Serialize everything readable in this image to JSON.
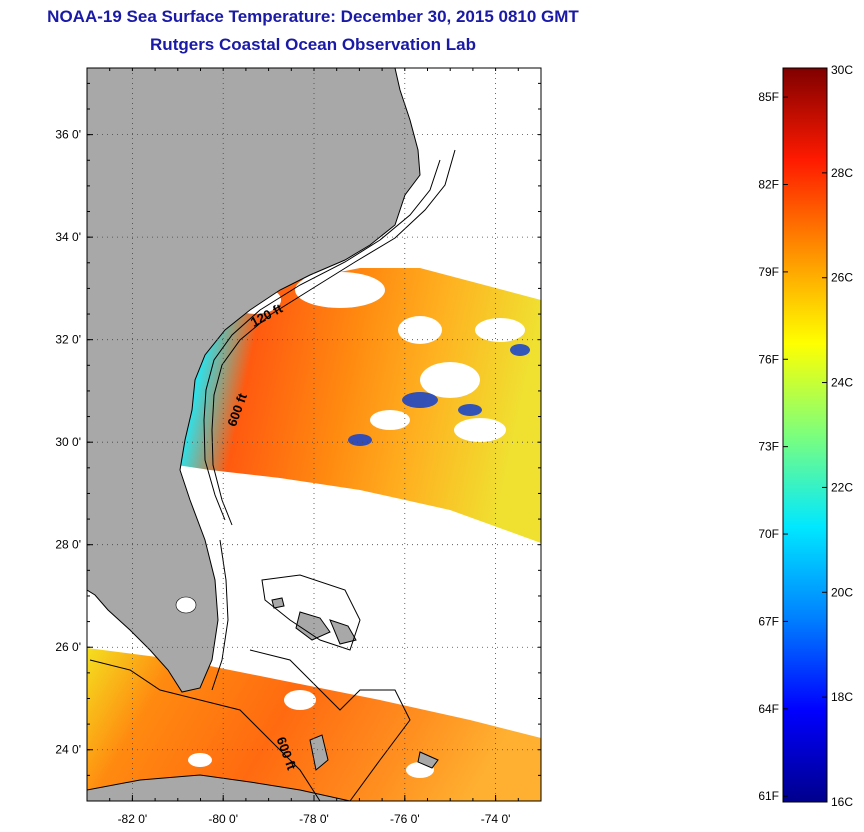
{
  "header": {
    "title": "NOAA-19 Sea Surface Temperature:  December 30, 2015 0810 GMT",
    "subtitle": "Rutgers Coastal Ocean Observation Lab"
  },
  "map": {
    "lon_range": [
      -83,
      -73
    ],
    "lat_range": [
      23,
      37.3
    ],
    "lon_ticks": [
      {
        "value": -82,
        "label": "-82 0'"
      },
      {
        "value": -80,
        "label": "-80 0'"
      },
      {
        "value": -78,
        "label": "-78 0'"
      },
      {
        "value": -76,
        "label": "-76 0'"
      },
      {
        "value": -74,
        "label": "-74 0'"
      }
    ],
    "lat_ticks": [
      {
        "value": 36,
        "label": "36 0'"
      },
      {
        "value": 34,
        "label": "34 0'"
      },
      {
        "value": 32,
        "label": "32 0'"
      },
      {
        "value": 30,
        "label": "30 0'"
      },
      {
        "value": 28,
        "label": "28 0'"
      },
      {
        "value": 26,
        "label": "26 0'"
      },
      {
        "value": 24,
        "label": "24 0'"
      }
    ],
    "grid": "dotted",
    "contour_labels": [
      {
        "text": "120 ft",
        "lon": -79.0,
        "lat": 32.4,
        "rotate": -28
      },
      {
        "text": "600 ft",
        "lon": -79.6,
        "lat": 30.6,
        "rotate": -70
      },
      {
        "text": "600 ft",
        "lon": -78.7,
        "lat": 23.9,
        "rotate": 70
      }
    ],
    "colors": {
      "land": "#a8a8a8",
      "coast": "#000000",
      "ocean_no_data": "#ffffff"
    }
  },
  "colorbar": {
    "min_c": 16,
    "max_c": 30,
    "celsius_ticks": [
      {
        "value": 30,
        "label": "30C"
      },
      {
        "value": 28,
        "label": "28C"
      },
      {
        "value": 26,
        "label": "26C"
      },
      {
        "value": 24,
        "label": "24C"
      },
      {
        "value": 22,
        "label": "22C"
      },
      {
        "value": 20,
        "label": "20C"
      },
      {
        "value": 18,
        "label": "18C"
      },
      {
        "value": 16,
        "label": "16C"
      }
    ],
    "fahrenheit_ticks": [
      {
        "value": 85,
        "label": "85F"
      },
      {
        "value": 82,
        "label": "82F"
      },
      {
        "value": 79,
        "label": "79F"
      },
      {
        "value": 76,
        "label": "76F"
      },
      {
        "value": 73,
        "label": "73F"
      },
      {
        "value": 70,
        "label": "70F"
      },
      {
        "value": 67,
        "label": "67F"
      },
      {
        "value": 64,
        "label": "64F"
      },
      {
        "value": 61,
        "label": "61F"
      }
    ],
    "colormap": [
      "#00008c",
      "#0000ff",
      "#0080ff",
      "#00e8ff",
      "#7cff7c",
      "#ffff00",
      "#ff9000",
      "#ff1a00",
      "#800000"
    ]
  }
}
